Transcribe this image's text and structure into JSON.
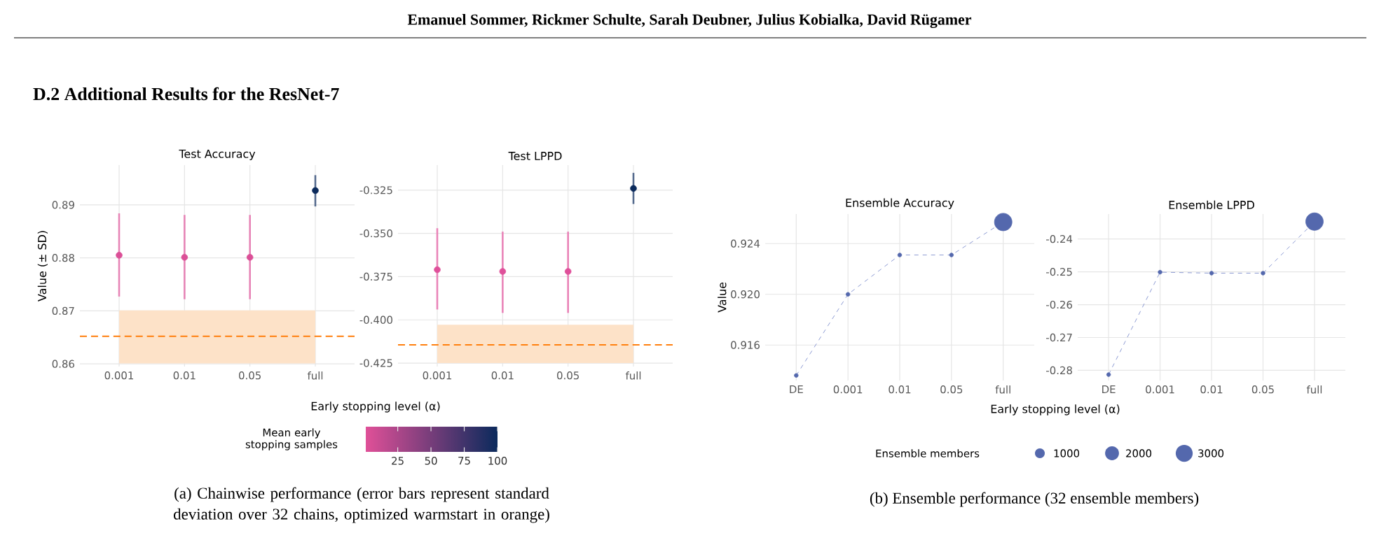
{
  "chart_data": [
    {
      "type": "scatter",
      "title": "Test Accuracy",
      "xlabel": "Early stopping level (α)",
      "ylabel": "Value (± SD)",
      "categories": [
        "0.001",
        "0.01",
        "0.05",
        "full"
      ],
      "values": [
        0.8805,
        0.8801,
        0.8801,
        0.8927
      ],
      "errors": [
        [
          0.8727,
          0.8884
        ],
        [
          0.8722,
          0.8881
        ],
        [
          0.8722,
          0.8881
        ],
        [
          0.8897,
          0.8956
        ]
      ],
      "cvalues": [
        3,
        3,
        3,
        100
      ],
      "clim": [
        1,
        100
      ],
      "cticks": [
        25,
        50,
        75,
        100
      ],
      "clabel": "Mean early stopping samples",
      "ylim": [
        0.8595,
        0.8975
      ],
      "yticks": [
        0.86,
        0.87,
        0.88,
        0.89
      ],
      "grid": true,
      "bands": [
        {
          "axis": "y",
          "from": 0.8601,
          "to": 0.8701,
          "color": "#fde2c8"
        }
      ],
      "ref_lines": [
        {
          "axis": "y",
          "value": 0.8652,
          "color": "#ff7f0e",
          "line_style": "dashed"
        }
      ],
      "annotations": [
        "Emanuel Sommer, Rickmer Schulte, Sarah Deubner, Julius Kobialka, David Rügamer",
        "D.2 Additional Results for the ResNet-7",
        "(a) Chainwise performance (error bars represent standard deviation over 32 chains, optimized warmstart in orange)"
      ]
    },
    {
      "type": "scatter",
      "title": "Test LPPD",
      "categories": [
        "0.001",
        "0.01",
        "0.05",
        "full"
      ],
      "values": [
        -0.371,
        -0.372,
        -0.372,
        -0.324
      ],
      "errors": [
        [
          -0.394,
          -0.347
        ],
        [
          -0.396,
          -0.349
        ],
        [
          -0.396,
          -0.349
        ],
        [
          -0.333,
          -0.315
        ]
      ],
      "colors": [
        "#df509a",
        "#df509a",
        "#df509a",
        "#0b2a5c"
      ],
      "ylim": [
        -0.427,
        -0.3105
      ],
      "yticks": [
        -0.425,
        {
          "value": -0.4,
          "label": "-0.400"
        },
        -0.375,
        {
          "value": -0.35,
          "label": "-0.350"
        },
        -0.325
      ],
      "grid": true,
      "bands": [
        {
          "axis": "y",
          "from": -0.425,
          "to": -0.4028,
          "color": "#fde2c8"
        }
      ],
      "ref_lines": [
        {
          "axis": "y",
          "value": -0.4145,
          "color": "#ff7f0e",
          "line_style": "dashed"
        }
      ]
    },
    {
      "type": "bubble",
      "title": "Ensemble Accuracy",
      "xlabel": "Early stopping level (α)",
      "ylabel": "Value",
      "categories": [
        "DE",
        "0.001",
        "0.01",
        "0.05",
        "full"
      ],
      "series": [
        {
          "type": "line",
          "color": "#8d9bd3",
          "line_style": "dashed",
          "values": [
            0.9136,
            0.92,
            0.9231,
            0.9231,
            0.9257
          ]
        },
        {
          "type": "bubble",
          "color": "#5468ad",
          "values": [
            0.9136,
            0.92,
            0.9231,
            0.9231,
            0.9257
          ],
          "sizes": [
            160,
            160,
            160,
            160,
            3200
          ]
        }
      ],
      "ylim": [
        0.9132,
        0.92633
      ],
      "yticks": [
        {
          "value": 0.916,
          "label": "0.916"
        },
        {
          "value": 0.92,
          "label": "0.920"
        },
        {
          "value": 0.924,
          "label": "0.924"
        }
      ],
      "grid": true,
      "legend_title": "Ensemble members",
      "size_legend": [
        1000,
        2000,
        3000
      ],
      "annotations": [
        "(b) Ensemble performance (32 ensemble members)"
      ]
    },
    {
      "type": "bubble",
      "title": "Ensemble LPPD",
      "categories": [
        "DE",
        "0.001",
        "0.01",
        "0.05",
        "full"
      ],
      "series": [
        {
          "type": "line",
          "color": "#8d9bd3",
          "line_style": "dashed",
          "values": [
            -0.2813,
            -0.2501,
            -0.2504,
            -0.2504,
            -0.2347
          ]
        },
        {
          "type": "bubble",
          "color": "#5468ad",
          "values": [
            -0.2813,
            -0.2501,
            -0.2504,
            -0.2504,
            -0.2347
          ],
          "sizes": [
            0.05,
            0.05,
            0.05,
            0.05,
            1
          ]
        }
      ],
      "ylim": [
        -0.2831,
        -0.2324
      ],
      "yticks": [
        -0.28,
        -0.27,
        -0.26,
        -0.25,
        -0.24
      ],
      "grid": true
    }
  ]
}
